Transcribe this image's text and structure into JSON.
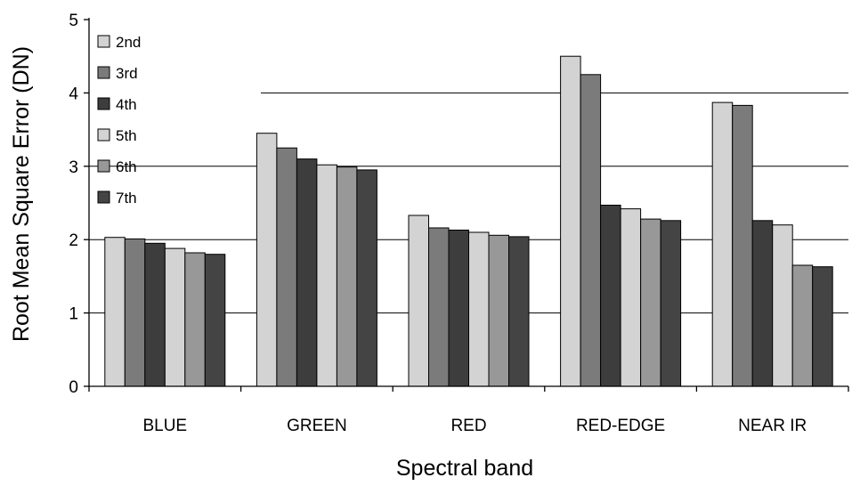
{
  "chart_data": {
    "type": "bar",
    "title": "",
    "xlabel": "Spectral band",
    "ylabel": "Root Mean Square Error (DN)",
    "ylim": [
      0,
      5
    ],
    "yticks": [
      "0",
      "1",
      "2",
      "3",
      "4",
      "5"
    ],
    "grid": "horizontal",
    "legend_position": "top-left",
    "categories": [
      "BLUE",
      "GREEN",
      "RED",
      "RED-EDGE",
      "NEAR IR"
    ],
    "series": [
      {
        "name": "2nd",
        "color": "#d3d3d3",
        "values": [
          2.03,
          3.45,
          2.33,
          4.5,
          3.87
        ]
      },
      {
        "name": "3rd",
        "color": "#7b7b7b",
        "values": [
          2.01,
          3.25,
          2.16,
          4.25,
          3.83
        ]
      },
      {
        "name": "4th",
        "color": "#3d3d3d",
        "values": [
          1.95,
          3.1,
          2.13,
          2.47,
          2.26
        ]
      },
      {
        "name": "5th",
        "color": "#d3d3d3",
        "values": [
          1.88,
          3.02,
          2.1,
          2.42,
          2.2
        ]
      },
      {
        "name": "6th",
        "color": "#989898",
        "values": [
          1.82,
          2.99,
          2.06,
          2.28,
          1.65
        ]
      },
      {
        "name": "7th",
        "color": "#444444",
        "values": [
          1.8,
          2.95,
          2.04,
          2.26,
          1.63
        ]
      }
    ]
  }
}
